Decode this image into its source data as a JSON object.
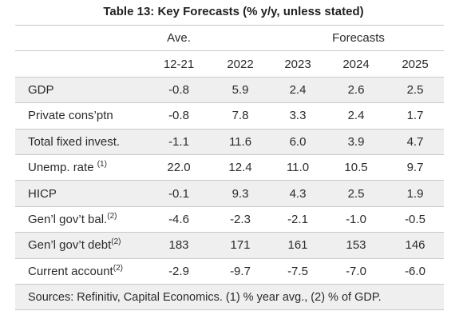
{
  "title": "Table 13: Key Forecasts (% y/y, unless stated)",
  "header": {
    "group_ave": "Ave.",
    "group_forecasts": "Forecasts",
    "columns": [
      "12-21",
      "2022",
      "2023",
      "2024",
      "2025"
    ]
  },
  "rows": [
    {
      "label": "GDP",
      "sup": "",
      "values": [
        "-0.8",
        "5.9",
        "2.4",
        "2.6",
        "2.5"
      ]
    },
    {
      "label": "Private cons’ptn",
      "sup": "",
      "values": [
        "-0.8",
        "7.8",
        "3.3",
        "2.4",
        "1.7"
      ]
    },
    {
      "label": "Total fixed invest.",
      "sup": "",
      "values": [
        "-1.1",
        "11.6",
        "6.0",
        "3.9",
        "4.7"
      ]
    },
    {
      "label": "Unemp. rate",
      "sup": "(1)",
      "values": [
        "22.0",
        "12.4",
        "11.0",
        "10.5",
        "9.7"
      ]
    },
    {
      "label": "HICP",
      "sup": "",
      "values": [
        "-0.1",
        "9.3",
        "4.3",
        "2.5",
        "1.9"
      ]
    },
    {
      "label": "Gen’l gov’t bal.",
      "sup": "(2)",
      "values": [
        "-4.6",
        "-2.3",
        "-2.1",
        "-1.0",
        "-0.5"
      ]
    },
    {
      "label": "Gen’l gov’t debt",
      "sup": "(2)",
      "values": [
        "183",
        "171",
        "161",
        "153",
        "146"
      ]
    },
    {
      "label": "Current account",
      "sup": "(2)",
      "values": [
        "-2.9",
        "-9.7",
        "-7.5",
        "-7.0",
        "-6.0"
      ]
    }
  ],
  "source": "Sources: Refinitiv, Capital Economics. (1) % year avg., (2) % of GDP.",
  "colors": {
    "shade": "#efefef",
    "rule": "#c9c9c9"
  }
}
